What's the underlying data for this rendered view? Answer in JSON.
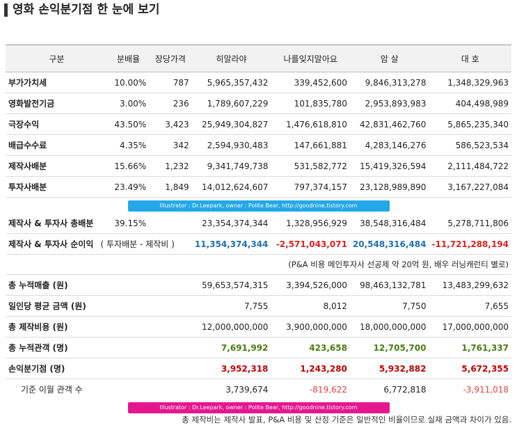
{
  "title": "영화 손익분기점 한 눈에 보기",
  "headers": [
    "구분",
    "분배율",
    "장당가격",
    "히말라야",
    "나를잊지말아요",
    "암 살",
    "대 호"
  ],
  "top_rows": [
    {
      "label": "부가가치세",
      "rate": "10.00%",
      "price": "787",
      "v": [
        "5,965,357,432",
        "339,452,600",
        "9,846,313,278",
        "1,348,329,963"
      ]
    },
    {
      "label": "영화발전기금",
      "rate": "3.00%",
      "price": "236",
      "v": [
        "1,789,607,229",
        "101,835,780",
        "2,953,893,983",
        "404,498,989"
      ]
    },
    {
      "label": "극장수익",
      "rate": "43.50%",
      "price": "3,423",
      "v": [
        "25,949,304,827",
        "1,476,618,810",
        "42,831,462,760",
        "5,865,235,340"
      ]
    },
    {
      "label": "배급수수료",
      "rate": "4.35%",
      "price": "342",
      "v": [
        "2,594,930,483",
        "147,661,881",
        "4,283,146,276",
        "586,523,534"
      ]
    },
    {
      "label": "제작사배분",
      "rate": "15.66%",
      "price": "1,232",
      "v": [
        "9,341,749,738",
        "531,582,772",
        "15,419,326,594",
        "2,111,484,722"
      ]
    },
    {
      "label": "투자사배분",
      "rate": "23.49%",
      "price": "1,849",
      "v": [
        "14,012,624,607",
        "797,374,157",
        "23,128,989,890",
        "3,167,227,084"
      ]
    }
  ],
  "banner_text": "Illustrator : Dr.Leepark, owner : Polite Bear, http://goodnine.tistory.com",
  "total_dist": {
    "label": "제작사 & 투자사 총배분",
    "rate": "39.15%",
    "v": [
      "23,354,374,344",
      "1,328,956,929",
      "38,548,316,484",
      "5,278,711,806"
    ]
  },
  "net_profit": {
    "label": "제작사 & 투자사 순이익",
    "note": "( 투자배분 - 제작비 )",
    "v": [
      "11,354,374,344",
      "-2,571,043,071",
      "20,548,316,484",
      "-11,721,288,194"
    ]
  },
  "pa_note": "(P&A 비용 메인투자사 선공제 약 20억 원, 배우 러닝캐런티 별로)",
  "bottom_rows": [
    {
      "label": "총 누적매출 (원)",
      "v": [
        "59,653,574,315",
        "3,394,526,000",
        "98,463,132,781",
        "13,483,299,632"
      ]
    },
    {
      "label": "일인당 평균 금액 (원)",
      "v": [
        "7,755",
        "8,012",
        "7,750",
        "7,655"
      ]
    },
    {
      "label": "총 제작비용 (원)",
      "v": [
        "12,000,000,000",
        "3,900,000,000",
        "18,000,000,000",
        "17,000,000,000"
      ]
    }
  ],
  "audience": {
    "label": "총 누적관객 (명)",
    "v": [
      "7,691,992",
      "423,658",
      "12,705,700",
      "1,761,337"
    ]
  },
  "bep": {
    "label": "손익분기점 (명)",
    "v": [
      "3,952,318",
      "1,243,280",
      "5,932,882",
      "5,672,355"
    ]
  },
  "excess": {
    "label": "기준 이월 관객 수",
    "v": [
      "3,739,674",
      "-819,622",
      "6,772,818",
      "-3,911,018"
    ]
  },
  "footer": "총 제작비는 제작사 발표, P&A 비용 및 산정 기준은 일반적인 비율이므로 실재 금액과 차이가 있음.",
  "colors": {
    "blue": "#1f6fb5",
    "red": "#e02020",
    "green": "#4a7d12",
    "darkred": "#c00000",
    "banner_blue": "#22a8e6",
    "banner_pink": "#e6168f"
  }
}
